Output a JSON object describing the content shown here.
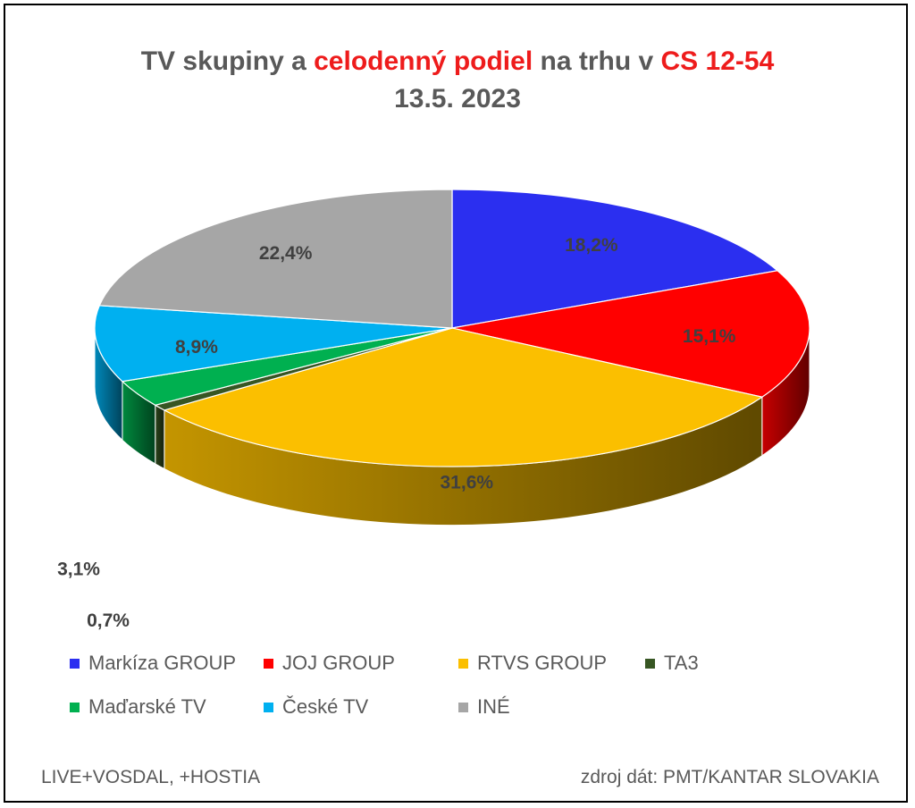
{
  "title": {
    "part1": "TV skupiny a ",
    "highlight1": "celodenný podiel",
    "part2": " na trhu v ",
    "highlight2": "CS 12-54",
    "date": "13.5. 2023"
  },
  "footer": {
    "left": "LIVE+VOSDAL, +HOSTIA",
    "right": "zdroj dát: PMT/KANTAR SLOVAKIA"
  },
  "chart_data": {
    "type": "pie",
    "style": "3d-exploded-none",
    "start": "12 o'clock, clockwise",
    "legend_position": "bottom",
    "slices": [
      {
        "name": "Markíza GROUP",
        "value": 18.2,
        "label": "18,2%",
        "color": "#2b2ff0"
      },
      {
        "name": "JOJ GROUP",
        "value": 15.1,
        "label": "15,1%",
        "color": "#ff0000"
      },
      {
        "name": "RTVS GROUP",
        "value": 31.6,
        "label": "31,6%",
        "color": "#fbbf00"
      },
      {
        "name": "TA3",
        "value": 0.7,
        "label": "0,7%",
        "color": "#375623"
      },
      {
        "name": "Maďarské  TV",
        "value": 3.1,
        "label": "3,1%",
        "color": "#00b050"
      },
      {
        "name": "České  TV",
        "value": 8.9,
        "label": "8,9%",
        "color": "#00b0f0"
      },
      {
        "name": "INÉ",
        "value": 22.4,
        "label": "22,4%",
        "color": "#a6a6a6"
      }
    ]
  }
}
